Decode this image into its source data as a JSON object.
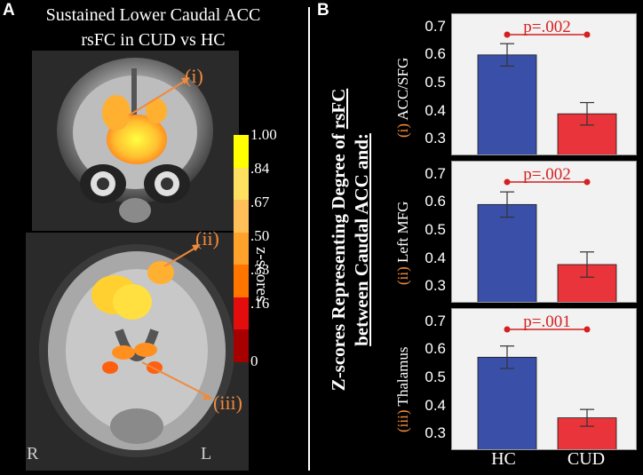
{
  "panel_a": {
    "label": "A",
    "title_line1": "Sustained Lower Caudal ACC",
    "title_line2": "rsFC in CUD vs HC",
    "callouts": [
      "(i)",
      "(ii)",
      "(iii)"
    ],
    "orientation_right": "R",
    "orientation_left": "L",
    "colorbar": {
      "title": "z-scores",
      "ticks": [
        "1.00",
        ".84",
        ".67",
        ".50",
        ".33",
        ".16",
        "0"
      ],
      "colors": [
        "#ffff00",
        "#ffe060",
        "#ffc05a",
        "#ffa22c",
        "#ff7500",
        "#e30d0d",
        "#a60000"
      ]
    }
  },
  "panel_b": {
    "label": "B",
    "ylabel_part1": "Z-scores Representing Degree of ",
    "ylabel_part2": "rsFC",
    "ylabel_line2": "between Caudal ACC and:",
    "colors": {
      "hc": "#3a4fa8",
      "cud": "#e8343a",
      "sig": "#d42020"
    }
  },
  "chart_data": [
    {
      "type": "bar",
      "row_number": "(i)",
      "row_label": "ACC/SFG",
      "categories": [
        "HC",
        "CUD"
      ],
      "values": [
        0.605,
        0.395
      ],
      "errors": [
        0.04,
        0.04
      ],
      "ylim": [
        0.25,
        0.75
      ],
      "yticks": [
        "0.3",
        "0.4",
        "0.5",
        "0.6",
        "0.7"
      ],
      "annotation": "p=.002"
    },
    {
      "type": "bar",
      "row_number": "(ii)",
      "row_label": "Left MFG",
      "categories": [
        "HC",
        "CUD"
      ],
      "values": [
        0.597,
        0.383
      ],
      "errors": [
        0.045,
        0.045
      ],
      "ylim": [
        0.25,
        0.75
      ],
      "yticks": [
        "0.3",
        "0.4",
        "0.5",
        "0.6",
        "0.7"
      ],
      "annotation": "p=.002"
    },
    {
      "type": "bar",
      "row_number": "(iii)",
      "row_label": "Thalamus",
      "categories": [
        "HC",
        "CUD"
      ],
      "values": [
        0.578,
        0.362
      ],
      "errors": [
        0.04,
        0.03
      ],
      "ylim": [
        0.25,
        0.75
      ],
      "yticks": [
        "0.3",
        "0.4",
        "0.5",
        "0.6",
        "0.7"
      ],
      "annotation": "p=.001"
    }
  ],
  "x_categories": [
    "HC",
    "CUD"
  ]
}
